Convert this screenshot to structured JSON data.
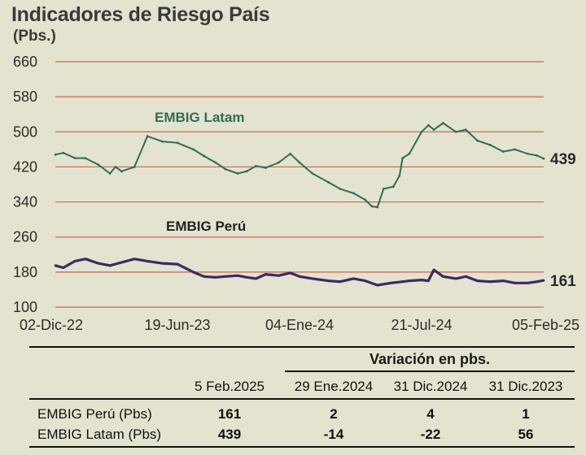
{
  "title": "Indicadores de Riesgo País",
  "unit": "(Pbs.)",
  "colors": {
    "grid": "#c86a4e",
    "latam": "#2f6e55",
    "peru": "#3a2a66"
  },
  "chart_data": {
    "type": "line",
    "title": "Indicadores de Riesgo País",
    "ylabel": "(Pbs.)",
    "ylim": [
      100,
      660
    ],
    "yticks": [
      660,
      580,
      500,
      420,
      340,
      260,
      180,
      100
    ],
    "xticks": [
      "02-Dic-22",
      "19-Jun-23",
      "04-Ene-24",
      "21-Jul-24",
      "05-Feb-25"
    ],
    "grid": true,
    "series": [
      {
        "name": "EMBIG Latam",
        "end_value": 439,
        "x": [
          "02-Dic-22",
          "15-Dic-22",
          "03-Ene-23",
          "20-Ene-23",
          "10-Feb-23",
          "01-Mar-23",
          "10-Mar-23",
          "20-Mar-23",
          "10-Abr-23",
          "01-May-23",
          "25-May-23",
          "19-Jun-23",
          "15-Jul-23",
          "01-Ago-23",
          "20-Ago-23",
          "05-Sep-23",
          "25-Sep-23",
          "10-Oct-23",
          "25-Oct-23",
          "10-Nov-23",
          "01-Dic-23",
          "20-Dic-23",
          "04-Ene-24",
          "25-Ene-24",
          "20-Feb-24",
          "10-Mar-24",
          "01-Abr-24",
          "20-Abr-24",
          "01-May-24",
          "10-May-24",
          "20-May-24",
          "05-Jun-24",
          "15-Jun-24",
          "20-Jun-24",
          "01-Jul-24",
          "21-Jul-24",
          "01-Ago-24",
          "10-Ago-24",
          "25-Ago-24",
          "15-Sep-24",
          "01-Oct-24",
          "20-Oct-24",
          "10-Nov-24",
          "01-Dic-24",
          "20-Dic-24",
          "10-Ene-25",
          "25-Ene-25",
          "05-Feb-25"
        ],
        "values": [
          448,
          452,
          440,
          440,
          425,
          405,
          420,
          410,
          420,
          490,
          478,
          475,
          460,
          445,
          430,
          415,
          405,
          410,
          422,
          418,
          430,
          450,
          430,
          405,
          385,
          370,
          360,
          345,
          330,
          328,
          370,
          375,
          400,
          440,
          450,
          500,
          515,
          505,
          520,
          500,
          505,
          480,
          470,
          455,
          460,
          450,
          446,
          439
        ]
      },
      {
        "name": "EMBIG Perú",
        "end_value": 161,
        "x": [
          "02-Dic-22",
          "15-Dic-22",
          "03-Ene-23",
          "20-Ene-23",
          "10-Feb-23",
          "01-Mar-23",
          "20-Mar-23",
          "10-Abr-23",
          "01-May-23",
          "25-May-23",
          "19-Jun-23",
          "15-Jul-23",
          "01-Ago-23",
          "20-Ago-23",
          "05-Sep-23",
          "25-Sep-23",
          "10-Oct-23",
          "25-Oct-23",
          "10-Nov-23",
          "01-Dic-23",
          "20-Dic-23",
          "04-Ene-24",
          "25-Ene-24",
          "20-Feb-24",
          "10-Mar-24",
          "01-Abr-24",
          "20-Abr-24",
          "10-May-24",
          "01-Jun-24",
          "20-Jun-24",
          "01-Jul-24",
          "21-Jul-24",
          "01-Ago-24",
          "10-Ago-24",
          "25-Ago-24",
          "15-Sep-24",
          "01-Oct-24",
          "20-Oct-24",
          "10-Nov-24",
          "01-Dic-24",
          "20-Dic-24",
          "10-Ene-25",
          "25-Ene-25",
          "05-Feb-25"
        ],
        "values": [
          195,
          190,
          205,
          210,
          200,
          195,
          202,
          210,
          205,
          200,
          198,
          180,
          170,
          168,
          170,
          172,
          168,
          165,
          175,
          172,
          178,
          170,
          165,
          160,
          158,
          165,
          160,
          150,
          155,
          158,
          160,
          162,
          160,
          185,
          170,
          165,
          170,
          160,
          158,
          160,
          155,
          155,
          158,
          161
        ]
      }
    ],
    "annotations": [
      "EMBIG Latam",
      "EMBIG Perú"
    ]
  },
  "table": {
    "variation_header": "Variación en pbs.",
    "columns": [
      "5 Feb.2025",
      "29 Ene.2024",
      "31 Dic.2024",
      "31 Dic.2023"
    ],
    "rows": [
      {
        "label": "EMBIG Perú (Pbs)",
        "values": [
          "161",
          "2",
          "4",
          "1"
        ]
      },
      {
        "label": "EMBIG Latam (Pbs)",
        "values": [
          "439",
          "-14",
          "-22",
          "56"
        ]
      }
    ]
  }
}
